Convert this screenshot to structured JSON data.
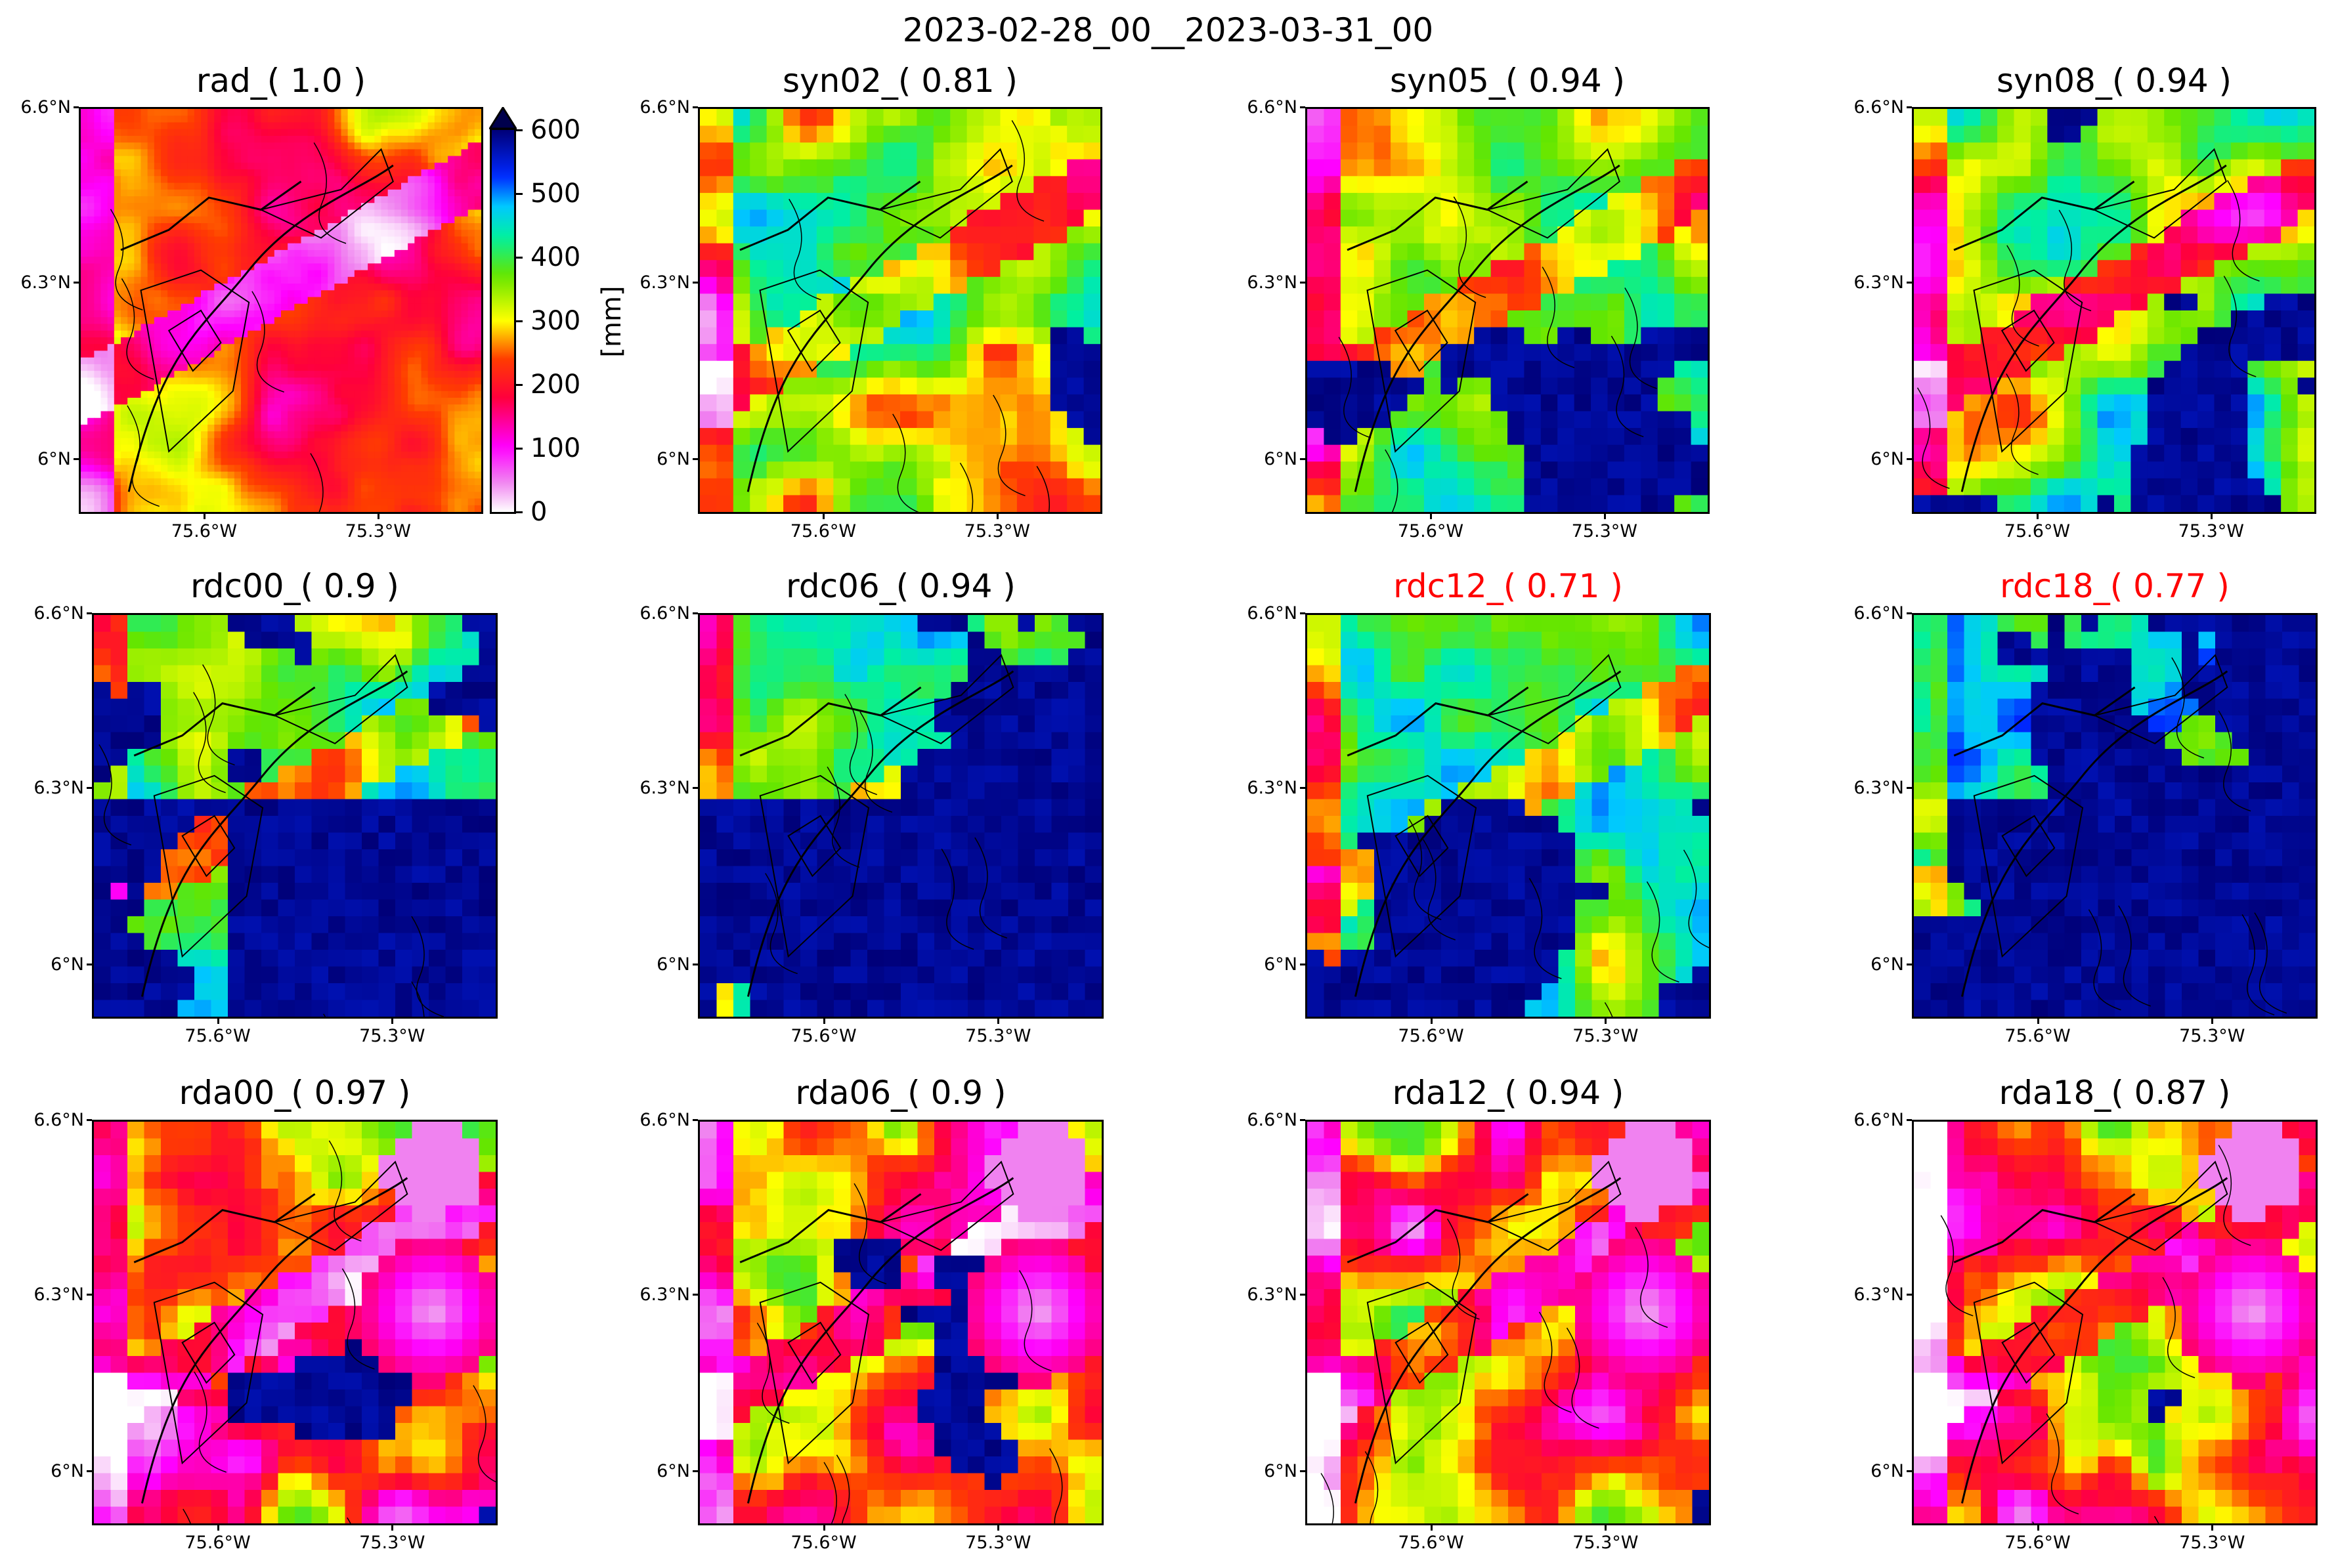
{
  "figure": {
    "title": "2023-02-28_00__2023-03-31_00"
  },
  "axes": {
    "lat_ticks": [
      "6.6°N",
      "6.3°N",
      "6°N"
    ],
    "lon_ticks": [
      "75.6°W",
      "75.3°W"
    ]
  },
  "colorbar": {
    "label": "[mm]",
    "ticks": [
      "600",
      "500",
      "400",
      "300",
      "200",
      "100",
      "0"
    ],
    "range": [
      0,
      600
    ],
    "extend": "max"
  },
  "panels": [
    {
      "title": "rad_( 1.0 )",
      "title_color": "#000000"
    },
    {
      "title": "syn02_( 0.81 )",
      "title_color": "#000000"
    },
    {
      "title": "syn05_( 0.94 )",
      "title_color": "#000000"
    },
    {
      "title": "syn08_( 0.94 )",
      "title_color": "#000000"
    },
    {
      "title": "rdc00_( 0.9 )",
      "title_color": "#000000"
    },
    {
      "title": "rdc06_( 0.94 )",
      "title_color": "#000000"
    },
    {
      "title": "rdc12_( 0.71 )",
      "title_color": "#ff0000"
    },
    {
      "title": "rdc18_( 0.77 )",
      "title_color": "#ff0000"
    },
    {
      "title": "rda00_( 0.97 )",
      "title_color": "#000000"
    },
    {
      "title": "rda06_( 0.9 )",
      "title_color": "#000000"
    },
    {
      "title": "rda12_( 0.94 )",
      "title_color": "#000000"
    },
    {
      "title": "rda18_( 0.87 )",
      "title_color": "#000000"
    }
  ]
}
